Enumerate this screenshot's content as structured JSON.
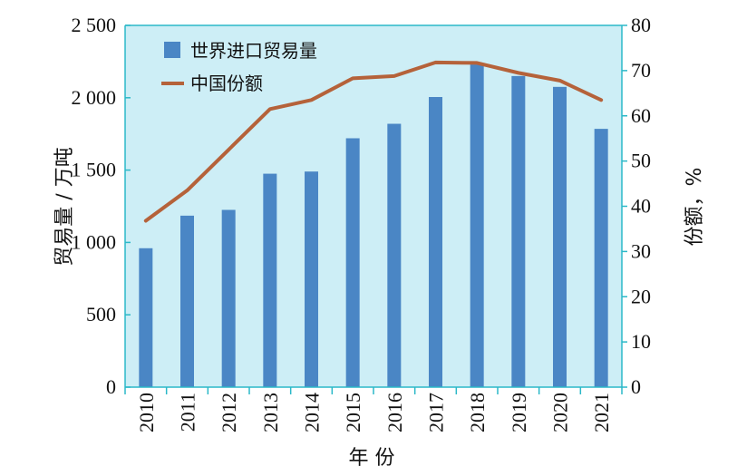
{
  "chart_data": {
    "type": "bar",
    "categories": [
      "2010",
      "2011",
      "2012",
      "2013",
      "2014",
      "2015",
      "2016",
      "2017",
      "2018",
      "2019",
      "2020",
      "2021"
    ],
    "series": [
      {
        "name": "世界进口贸易量",
        "kind": "bar",
        "axis": "left",
        "color": "#4a86c5",
        "values": [
          960,
          1185,
          1225,
          1475,
          1490,
          1720,
          1820,
          2005,
          2230,
          2150,
          2075,
          1785
        ]
      },
      {
        "name": "中国份额",
        "kind": "line",
        "axis": "right",
        "color": "#b5623a",
        "values": [
          36.8,
          43.5,
          52.5,
          61.5,
          63.5,
          68.3,
          68.8,
          71.8,
          71.7,
          69.5,
          67.8,
          63.5
        ]
      }
    ],
    "ylabel_left": "贸易量 / 万吨",
    "ylabel_right": "份额，%",
    "xlabel": "年  份",
    "ylim_left": [
      0,
      2500
    ],
    "ylim_right": [
      0,
      80
    ],
    "yticks_left": [
      "0",
      "500",
      "1 000",
      "1 500",
      "2 000",
      "2 500"
    ],
    "yticks_right": [
      "0",
      "10",
      "20",
      "30",
      "40",
      "50",
      "60",
      "70",
      "80"
    ],
    "legend_position": "top-left",
    "plot_background": "#cdeef6",
    "axis_color": "#2bb8c8",
    "grid": false
  }
}
